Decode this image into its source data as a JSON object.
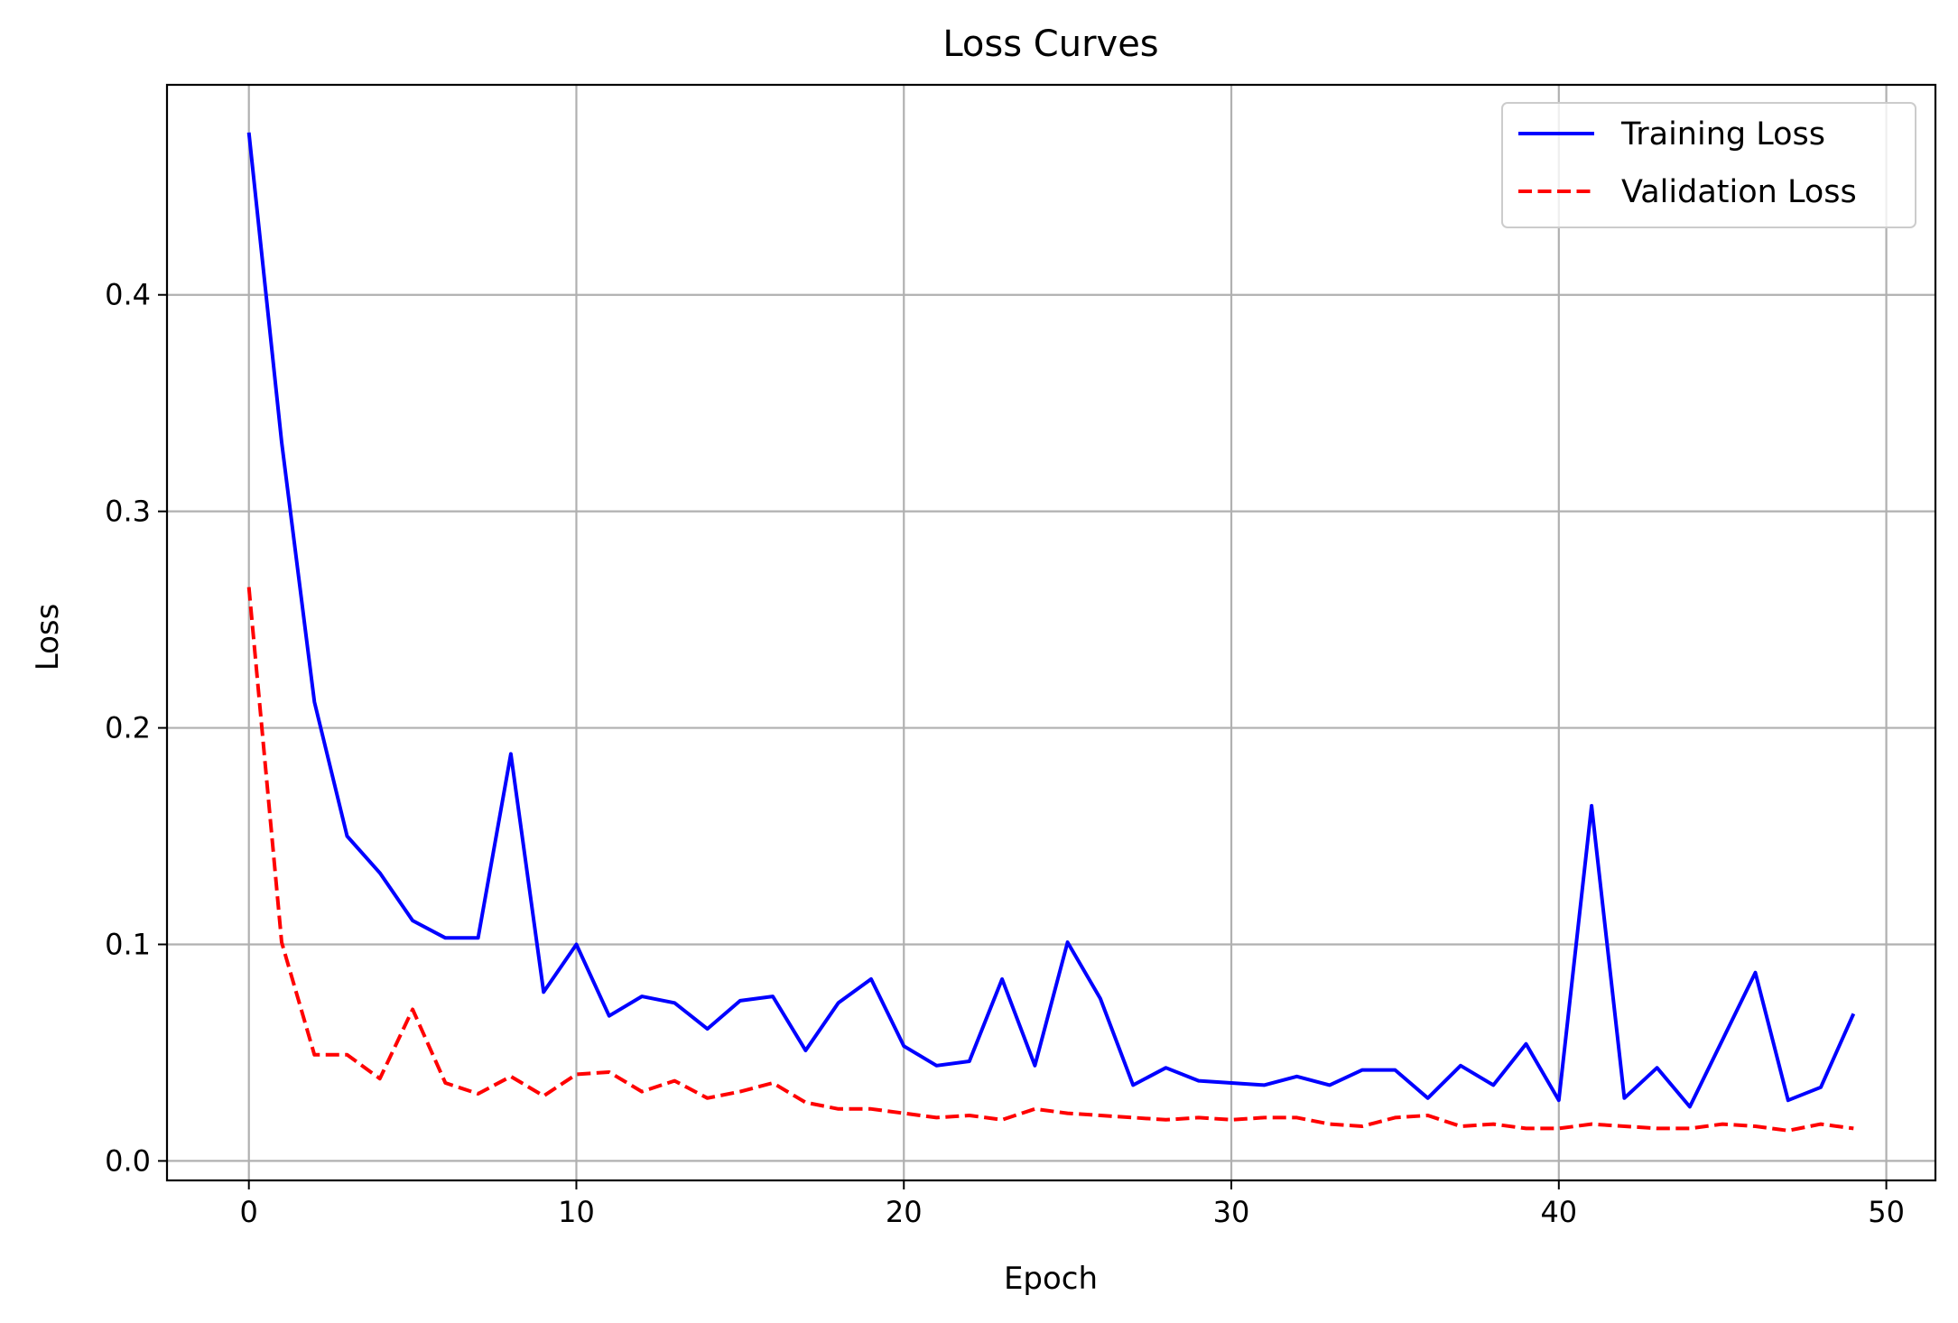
{
  "chart_data": {
    "type": "line",
    "title": "Loss Curves",
    "xlabel": "Epoch",
    "ylabel": "Loss",
    "xlim": [
      -2.5,
      51.5
    ],
    "ylim": [
      -0.009,
      0.497
    ],
    "xticks": [
      0,
      10,
      20,
      30,
      40,
      50
    ],
    "yticks": [
      0.0,
      0.1,
      0.2,
      0.3,
      0.4
    ],
    "xtick_labels": [
      "0",
      "10",
      "20",
      "30",
      "40",
      "50"
    ],
    "ytick_labels": [
      "0.0",
      "0.1",
      "0.2",
      "0.3",
      "0.4"
    ],
    "grid": true,
    "legend_position": "top-right",
    "x": [
      0,
      1,
      2,
      3,
      4,
      5,
      6,
      7,
      8,
      9,
      10,
      11,
      12,
      13,
      14,
      15,
      16,
      17,
      18,
      19,
      20,
      21,
      22,
      23,
      24,
      25,
      26,
      27,
      28,
      29,
      30,
      31,
      32,
      33,
      34,
      35,
      36,
      37,
      38,
      39,
      40,
      41,
      42,
      43,
      44,
      45,
      46,
      47,
      48,
      49
    ],
    "series": [
      {
        "name": "Training Loss",
        "color": "#0000ff",
        "style": "solid",
        "values": [
          0.475,
          0.332,
          0.212,
          0.15,
          0.133,
          0.111,
          0.103,
          0.103,
          0.188,
          0.078,
          0.1,
          0.067,
          0.076,
          0.073,
          0.061,
          0.074,
          0.076,
          0.051,
          0.073,
          0.084,
          0.053,
          0.044,
          0.046,
          0.084,
          0.044,
          0.101,
          0.075,
          0.035,
          0.043,
          0.037,
          0.036,
          0.035,
          0.039,
          0.035,
          0.042,
          0.042,
          0.029,
          0.044,
          0.035,
          0.054,
          0.028,
          0.164,
          0.029,
          0.043,
          0.025,
          0.056,
          0.087,
          0.028,
          0.034,
          0.068
        ]
      },
      {
        "name": "Validation Loss",
        "color": "#ff0000",
        "style": "dashed",
        "values": [
          0.265,
          0.101,
          0.049,
          0.049,
          0.038,
          0.07,
          0.036,
          0.031,
          0.039,
          0.03,
          0.04,
          0.041,
          0.032,
          0.037,
          0.029,
          0.032,
          0.036,
          0.027,
          0.024,
          0.024,
          0.022,
          0.02,
          0.021,
          0.019,
          0.024,
          0.022,
          0.021,
          0.02,
          0.019,
          0.02,
          0.019,
          0.02,
          0.02,
          0.017,
          0.016,
          0.02,
          0.021,
          0.016,
          0.017,
          0.015,
          0.015,
          0.017,
          0.016,
          0.015,
          0.015,
          0.017,
          0.016,
          0.014,
          0.017,
          0.015
        ]
      }
    ]
  }
}
